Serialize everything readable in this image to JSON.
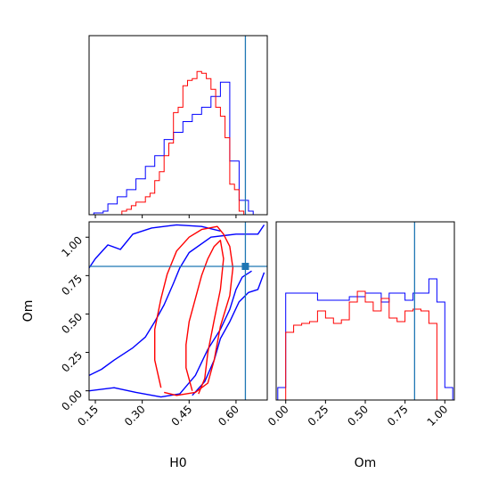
{
  "chart_data": {
    "type": "corner",
    "parameters": [
      "H0",
      "Om"
    ],
    "truth": {
      "H0": 0.63,
      "Om": 0.81
    },
    "colors": {
      "series_a": "#0000ff",
      "series_b": "#ff0000",
      "truth": "#1f77b4",
      "axes": "#000000"
    },
    "panels": [
      {
        "id": "hist_H0",
        "type": "step-histogram",
        "xlim": [
          0.13,
          0.7
        ],
        "ylim": [
          0,
          1.0
        ],
        "x_ticks": [
          0.15,
          0.3,
          0.45,
          0.6
        ],
        "x_tick_labels": [
          "",
          "",
          "",
          ""
        ],
        "y_tick_labels": [],
        "bin_edges": [
          0.145,
          0.16,
          0.175,
          0.19,
          0.205,
          0.22,
          0.235,
          0.25,
          0.265,
          0.28,
          0.295,
          0.31,
          0.325,
          0.34,
          0.355,
          0.37,
          0.385,
          0.4,
          0.415,
          0.43,
          0.445,
          0.46,
          0.475,
          0.49,
          0.505,
          0.52,
          0.535,
          0.55,
          0.565,
          0.58,
          0.595,
          0.61,
          0.625,
          0.64,
          0.655
        ],
        "series": [
          {
            "values": [
              0.01,
              0.01,
              0.02,
              0.06,
              0.06,
              0.1,
              0.1,
              0.14,
              0.14,
              0.2,
              0.2,
              0.27,
              0.27,
              0.33,
              0.33,
              0.42,
              0.42,
              0.46,
              0.46,
              0.52,
              0.52,
              0.56,
              0.56,
              0.6,
              0.6,
              0.66,
              0.66,
              0.74,
              0.74,
              0.3,
              0.3,
              0.08,
              0.08,
              0.02
            ]
          },
          {
            "values": [
              0.0,
              0.0,
              0.0,
              0.0,
              0.0,
              0.0,
              0.02,
              0.03,
              0.05,
              0.07,
              0.07,
              0.1,
              0.12,
              0.19,
              0.24,
              0.33,
              0.4,
              0.57,
              0.6,
              0.72,
              0.75,
              0.76,
              0.8,
              0.79,
              0.76,
              0.7,
              0.6,
              0.55,
              0.43,
              0.17,
              0.14,
              0.02,
              0.0,
              0.0
            ]
          }
        ]
      },
      {
        "id": "hist_Om",
        "type": "step-histogram",
        "xlim": [
          -0.06,
          1.06
        ],
        "ylim": [
          0,
          1.0
        ],
        "x_ticks": [
          0.0,
          0.25,
          0.5,
          0.75,
          1.0
        ],
        "x_tick_labels": [
          "0.00",
          "0.25",
          "0.50",
          "0.75",
          "1.00"
        ],
        "xlabel": "Om",
        "bin_edges": [
          -0.05,
          0.0,
          0.05,
          0.1,
          0.15,
          0.2,
          0.25,
          0.3,
          0.35,
          0.4,
          0.45,
          0.5,
          0.55,
          0.6,
          0.65,
          0.7,
          0.75,
          0.8,
          0.85,
          0.9,
          0.95,
          1.0,
          1.05
        ],
        "series": [
          {
            "values": [
              0.07,
              0.6,
              0.6,
              0.6,
              0.6,
              0.56,
              0.56,
              0.56,
              0.56,
              0.58,
              0.58,
              0.6,
              0.6,
              0.55,
              0.6,
              0.6,
              0.56,
              0.6,
              0.6,
              0.68,
              0.55,
              0.07
            ]
          },
          {
            "values": [
              0.0,
              0.38,
              0.42,
              0.43,
              0.44,
              0.5,
              0.46,
              0.43,
              0.45,
              0.55,
              0.61,
              0.55,
              0.5,
              0.57,
              0.46,
              0.44,
              0.5,
              0.51,
              0.5,
              0.43,
              0.0,
              0.0
            ]
          }
        ]
      },
      {
        "id": "contour_H0_Om",
        "type": "contour",
        "xlim": [
          0.13,
          0.7
        ],
        "ylim": [
          -0.06,
          1.1
        ],
        "x_ticks": [
          0.15,
          0.3,
          0.45,
          0.6
        ],
        "x_tick_labels": [
          "0.15",
          "0.30",
          "0.45",
          "0.60"
        ],
        "y_ticks": [
          0.0,
          0.25,
          0.5,
          0.75,
          1.0
        ],
        "y_tick_labels": [
          "0.00",
          "0.25",
          "0.50",
          "0.75",
          "1.00"
        ],
        "xlabel": "H0",
        "ylabel": "Om",
        "series": [
          {
            "contours": [
              [
                [
                  0.13,
                  0.1
                ],
                [
                  0.17,
                  0.14
                ],
                [
                  0.21,
                  0.2
                ],
                [
                  0.27,
                  0.28
                ],
                [
                  0.31,
                  0.35
                ],
                [
                  0.34,
                  0.45
                ],
                [
                  0.37,
                  0.56
                ],
                [
                  0.4,
                  0.7
                ],
                [
                  0.42,
                  0.8
                ],
                [
                  0.45,
                  0.9
                ],
                [
                  0.52,
                  1.0
                ],
                [
                  0.6,
                  1.02
                ],
                [
                  0.67,
                  1.02
                ],
                [
                  0.69,
                  1.08
                ]
              ],
              [
                [
                  0.13,
                  0.0
                ],
                [
                  0.21,
                  0.02
                ],
                [
                  0.28,
                  -0.01
                ],
                [
                  0.36,
                  -0.04
                ],
                [
                  0.42,
                  -0.02
                ],
                [
                  0.47,
                  0.1
                ],
                [
                  0.51,
                  0.27
                ],
                [
                  0.55,
                  0.4
                ],
                [
                  0.58,
                  0.53
                ],
                [
                  0.6,
                  0.66
                ],
                [
                  0.62,
                  0.74
                ],
                [
                  0.65,
                  0.78
                ]
              ],
              [
                [
                  0.13,
                  0.8
                ],
                [
                  0.15,
                  0.86
                ],
                [
                  0.19,
                  0.95
                ],
                [
                  0.23,
                  0.92
                ],
                [
                  0.27,
                  1.02
                ],
                [
                  0.33,
                  1.06
                ],
                [
                  0.41,
                  1.08
                ],
                [
                  0.49,
                  1.07
                ],
                [
                  0.55,
                  1.04
                ]
              ],
              [
                [
                  0.46,
                  -0.03
                ],
                [
                  0.5,
                  0.06
                ],
                [
                  0.53,
                  0.2
                ],
                [
                  0.55,
                  0.34
                ],
                [
                  0.58,
                  0.45
                ],
                [
                  0.61,
                  0.58
                ],
                [
                  0.64,
                  0.64
                ],
                [
                  0.67,
                  0.66
                ],
                [
                  0.69,
                  0.77
                ]
              ]
            ]
          },
          {
            "contours": [
              [
                [
                  0.36,
                  0.02
                ],
                [
                  0.34,
                  0.2
                ],
                [
                  0.34,
                  0.4
                ],
                [
                  0.36,
                  0.6
                ],
                [
                  0.38,
                  0.76
                ],
                [
                  0.41,
                  0.91
                ],
                [
                  0.45,
                  1.0
                ],
                [
                  0.49,
                  1.05
                ],
                [
                  0.54,
                  1.07
                ],
                [
                  0.56,
                  1.02
                ],
                [
                  0.58,
                  0.94
                ],
                [
                  0.59,
                  0.8
                ],
                [
                  0.58,
                  0.62
                ],
                [
                  0.55,
                  0.42
                ],
                [
                  0.53,
                  0.2
                ],
                [
                  0.51,
                  0.05
                ],
                [
                  0.47,
                  -0.01
                ],
                [
                  0.41,
                  -0.03
                ],
                [
                  0.37,
                  -0.01
                ]
              ],
              [
                [
                  0.46,
                  0.0
                ],
                [
                  0.44,
                  0.15
                ],
                [
                  0.44,
                  0.3
                ],
                [
                  0.45,
                  0.45
                ],
                [
                  0.47,
                  0.6
                ],
                [
                  0.49,
                  0.75
                ],
                [
                  0.51,
                  0.86
                ],
                [
                  0.53,
                  0.94
                ],
                [
                  0.55,
                  0.98
                ],
                [
                  0.56,
                  0.86
                ],
                [
                  0.55,
                  0.66
                ],
                [
                  0.53,
                  0.46
                ],
                [
                  0.51,
                  0.25
                ],
                [
                  0.5,
                  0.08
                ],
                [
                  0.48,
                  -0.02
                ]
              ]
            ]
          }
        ]
      }
    ]
  }
}
